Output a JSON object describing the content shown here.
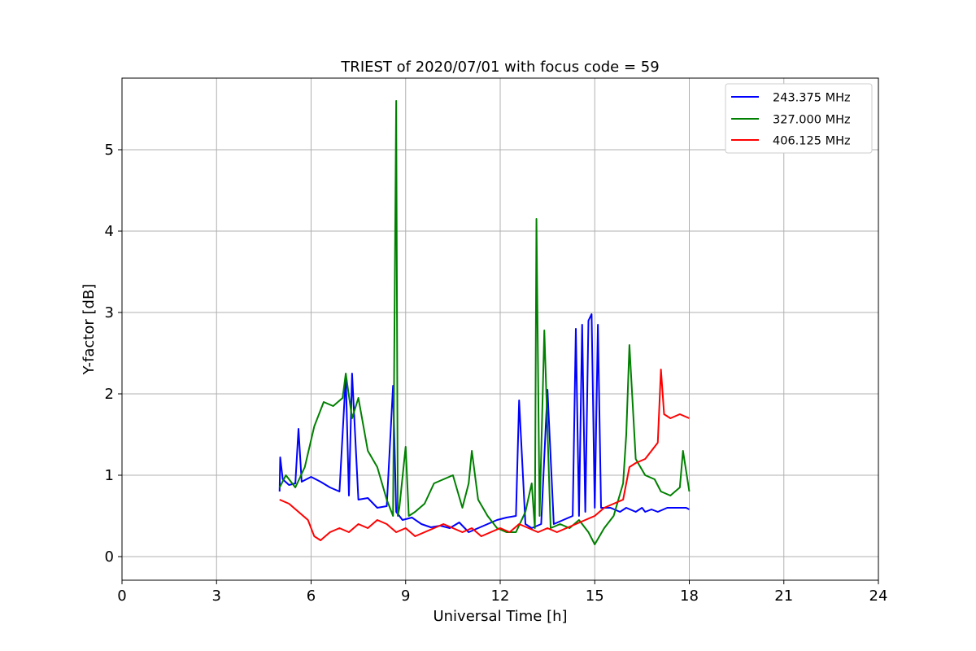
{
  "chart_data": {
    "type": "line",
    "title": "TRIEST of 2020/07/01 with focus code = 59",
    "xlabel": "Universal Time [h]",
    "ylabel": "Y-factor [dB]",
    "xlim": [
      0,
      24
    ],
    "ylim": [
      -0.29,
      5.88
    ],
    "x_ticks": [
      0,
      3,
      6,
      9,
      12,
      15,
      18,
      21,
      24
    ],
    "y_ticks": [
      0,
      1,
      2,
      3,
      4,
      5
    ],
    "grid": true,
    "legend_position": "top-right",
    "series": [
      {
        "name": "243.375 MHz",
        "color": "#0000ff",
        "x": [
          5.0,
          5.02,
          5.1,
          5.3,
          5.5,
          5.6,
          5.7,
          6.0,
          6.3,
          6.6,
          6.9,
          7.1,
          7.2,
          7.3,
          7.5,
          7.8,
          8.1,
          8.4,
          8.6,
          8.7,
          8.9,
          9.2,
          9.5,
          9.8,
          10.1,
          10.4,
          10.7,
          11.0,
          11.3,
          11.6,
          11.9,
          12.2,
          12.5,
          12.6,
          12.8,
          13.0,
          13.3,
          13.5,
          13.7,
          14.0,
          14.3,
          14.4,
          14.5,
          14.6,
          14.7,
          14.8,
          14.9,
          15.0,
          15.1,
          15.2,
          15.5,
          15.8,
          16.0,
          16.3,
          16.5,
          16.6,
          16.8,
          17.0,
          17.3,
          17.6,
          17.9,
          18.0
        ],
        "y": [
          0.8,
          1.22,
          0.95,
          0.88,
          0.9,
          1.57,
          0.92,
          0.98,
          0.92,
          0.85,
          0.8,
          2.22,
          0.75,
          2.25,
          0.7,
          0.72,
          0.6,
          0.62,
          2.1,
          0.55,
          0.45,
          0.48,
          0.4,
          0.36,
          0.38,
          0.35,
          0.42,
          0.3,
          0.35,
          0.4,
          0.45,
          0.48,
          0.5,
          1.92,
          0.4,
          0.35,
          0.4,
          2.05,
          0.4,
          0.45,
          0.5,
          2.8,
          0.5,
          2.85,
          0.55,
          2.9,
          2.98,
          0.6,
          2.85,
          0.6,
          0.6,
          0.55,
          0.6,
          0.55,
          0.6,
          0.55,
          0.58,
          0.55,
          0.6,
          0.6,
          0.6,
          0.58
        ]
      },
      {
        "name": "327.000 MHz",
        "color": "#008000",
        "x": [
          5.0,
          5.2,
          5.5,
          5.8,
          6.1,
          6.4,
          6.7,
          7.0,
          7.1,
          7.3,
          7.5,
          7.8,
          8.1,
          8.4,
          8.6,
          8.7,
          8.75,
          8.8,
          9.0,
          9.1,
          9.3,
          9.6,
          9.9,
          10.2,
          10.5,
          10.8,
          11.0,
          11.1,
          11.3,
          11.6,
          11.9,
          12.2,
          12.5,
          12.8,
          13.0,
          13.1,
          13.15,
          13.25,
          13.4,
          13.6,
          13.9,
          14.2,
          14.5,
          14.8,
          15.0,
          15.3,
          15.6,
          15.9,
          16.0,
          16.1,
          16.3,
          16.6,
          16.9,
          17.1,
          17.4,
          17.7,
          17.8,
          18.0
        ],
        "y": [
          0.85,
          1.0,
          0.85,
          1.1,
          1.6,
          1.9,
          1.85,
          1.95,
          2.25,
          1.7,
          1.95,
          1.3,
          1.1,
          0.7,
          0.5,
          5.6,
          0.5,
          0.6,
          1.35,
          0.5,
          0.55,
          0.65,
          0.9,
          0.95,
          1.0,
          0.6,
          0.9,
          1.3,
          0.7,
          0.5,
          0.35,
          0.3,
          0.3,
          0.55,
          0.9,
          0.35,
          4.15,
          0.5,
          2.78,
          0.35,
          0.4,
          0.35,
          0.45,
          0.3,
          0.15,
          0.35,
          0.5,
          0.9,
          1.5,
          2.6,
          1.2,
          1.0,
          0.95,
          0.8,
          0.75,
          0.85,
          1.3,
          0.8
        ]
      },
      {
        "name": "406.125 MHz",
        "color": "#ff0000",
        "x": [
          5.0,
          5.3,
          5.6,
          5.9,
          6.1,
          6.3,
          6.6,
          6.9,
          7.2,
          7.5,
          7.8,
          8.1,
          8.4,
          8.7,
          9.0,
          9.3,
          9.6,
          9.9,
          10.2,
          10.5,
          10.8,
          11.1,
          11.4,
          11.7,
          12.0,
          12.3,
          12.6,
          12.9,
          13.2,
          13.5,
          13.8,
          14.1,
          14.4,
          14.7,
          15.0,
          15.3,
          15.6,
          15.9,
          16.0,
          16.1,
          16.3,
          16.6,
          16.9,
          17.0,
          17.1,
          17.2,
          17.4,
          17.7,
          18.0
        ],
        "y": [
          0.7,
          0.65,
          0.55,
          0.45,
          0.25,
          0.2,
          0.3,
          0.35,
          0.3,
          0.4,
          0.35,
          0.45,
          0.4,
          0.3,
          0.35,
          0.25,
          0.3,
          0.35,
          0.4,
          0.35,
          0.3,
          0.35,
          0.25,
          0.3,
          0.35,
          0.3,
          0.4,
          0.35,
          0.3,
          0.35,
          0.3,
          0.35,
          0.4,
          0.45,
          0.5,
          0.6,
          0.65,
          0.7,
          0.9,
          1.1,
          1.15,
          1.2,
          1.35,
          1.4,
          2.3,
          1.75,
          1.7,
          1.75,
          1.7
        ]
      }
    ]
  }
}
